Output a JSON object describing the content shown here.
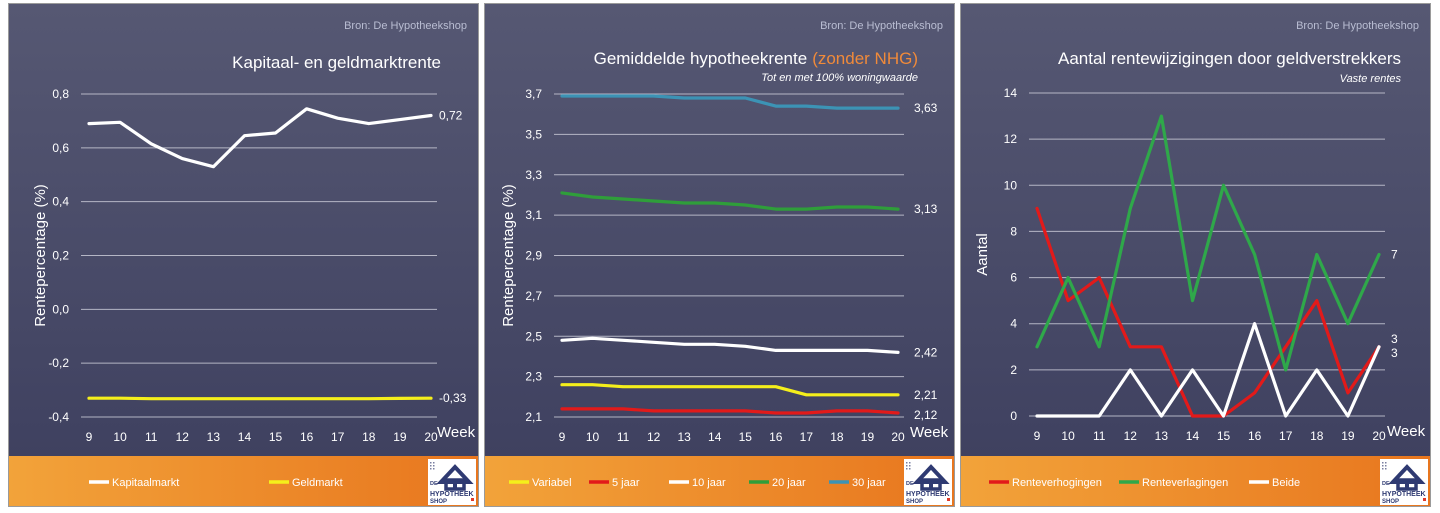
{
  "colors": {
    "panel_top": "#565873",
    "panel_bottom": "#3f4160",
    "legend_left": "#f2a33a",
    "legend_right": "#e8761e",
    "grid": "#c8c9d6",
    "title_accent": "#f08a3a"
  },
  "logo": {
    "prefix": "DE",
    "line1": "HYPOTHEEK",
    "line2": "SHOP"
  },
  "chart_data": [
    {
      "type": "line",
      "source": "Bron: De Hypotheekshop",
      "title": "Kapitaal- en geldmarktrente",
      "title_accent": "",
      "subtitle": "",
      "xlabel": "Week",
      "ylabel": "Rentepercentage (%)",
      "x": [
        9,
        10,
        11,
        12,
        13,
        14,
        15,
        16,
        17,
        18,
        19,
        20
      ],
      "ylim": [
        -0.4,
        0.8
      ],
      "yticks": [
        -0.4,
        -0.2,
        0.0,
        0.2,
        0.4,
        0.6,
        0.8
      ],
      "ytick_labels": [
        "-0,4",
        "-0,2",
        "0,0",
        "0,2",
        "0,4",
        "0,6",
        "0,8"
      ],
      "grid": true,
      "legend_position": "bottom",
      "series": [
        {
          "name": "Kapitaalmarkt",
          "color": "#ffffff",
          "end_label": "0,72",
          "values": [
            0.69,
            0.695,
            0.615,
            0.56,
            0.53,
            0.645,
            0.655,
            0.745,
            0.71,
            0.69,
            0.705,
            0.72
          ]
        },
        {
          "name": "Geldmarkt",
          "color": "#f5ef1b",
          "end_label": "-0,33",
          "values": [
            -0.33,
            -0.33,
            -0.332,
            -0.332,
            -0.332,
            -0.332,
            -0.332,
            -0.332,
            -0.332,
            -0.332,
            -0.331,
            -0.33
          ]
        }
      ]
    },
    {
      "type": "line",
      "source": "Bron: De Hypotheekshop",
      "title": "Gemiddelde hypotheekrente",
      "title_accent": "(zonder NHG)",
      "subtitle": "Tot en met 100% woningwaarde",
      "xlabel": "Week",
      "ylabel": "Rentepercentage (%)",
      "x": [
        9,
        10,
        11,
        12,
        13,
        14,
        15,
        16,
        17,
        18,
        19,
        20
      ],
      "ylim": [
        2.1,
        3.7
      ],
      "yticks": [
        2.1,
        2.3,
        2.5,
        2.7,
        2.9,
        3.1,
        3.3,
        3.5,
        3.7
      ],
      "ytick_labels": [
        "2,1",
        "2,3",
        "2,5",
        "2,7",
        "2,9",
        "3,1",
        "3,3",
        "3,5",
        "3,7"
      ],
      "grid": true,
      "legend_position": "bottom",
      "series": [
        {
          "name": "Variabel",
          "color": "#f5ef1b",
          "end_label": "2,21",
          "values": [
            2.26,
            2.26,
            2.25,
            2.25,
            2.25,
            2.25,
            2.25,
            2.25,
            2.21,
            2.21,
            2.21,
            2.21
          ]
        },
        {
          "name": "5 jaar",
          "color": "#e21a1a",
          "end_label": "2,12",
          "values": [
            2.14,
            2.14,
            2.14,
            2.13,
            2.13,
            2.13,
            2.13,
            2.12,
            2.12,
            2.13,
            2.13,
            2.12
          ]
        },
        {
          "name": "10 jaar",
          "color": "#ffffff",
          "end_label": "2,42",
          "values": [
            2.48,
            2.49,
            2.48,
            2.47,
            2.46,
            2.46,
            2.45,
            2.43,
            2.43,
            2.43,
            2.43,
            2.42
          ]
        },
        {
          "name": "20 jaar",
          "color": "#2f9e3a",
          "end_label": "3,13",
          "values": [
            3.21,
            3.19,
            3.18,
            3.17,
            3.16,
            3.16,
            3.15,
            3.13,
            3.13,
            3.14,
            3.14,
            3.13
          ]
        },
        {
          "name": "30 jaar",
          "color": "#3c93b5",
          "end_label": "3,63",
          "values": [
            3.69,
            3.69,
            3.69,
            3.69,
            3.68,
            3.68,
            3.68,
            3.64,
            3.64,
            3.63,
            3.63,
            3.63
          ]
        }
      ]
    },
    {
      "type": "line",
      "source": "Bron: De Hypotheekshop",
      "title": "Aantal rentewijzigingen door geldverstrekkers",
      "title_accent": "",
      "subtitle": "Vaste rentes",
      "xlabel": "Week",
      "ylabel": "Aantal",
      "x": [
        9,
        10,
        11,
        12,
        13,
        14,
        15,
        16,
        17,
        18,
        19,
        20
      ],
      "ylim": [
        0,
        14
      ],
      "yticks": [
        0,
        2,
        4,
        6,
        8,
        10,
        12,
        14
      ],
      "ytick_labels": [
        "0",
        "2",
        "4",
        "6",
        "8",
        "10",
        "12",
        "14"
      ],
      "grid": true,
      "legend_position": "bottom",
      "series": [
        {
          "name": "Renteverhogingen",
          "color": "#e21a1a",
          "end_label": "3",
          "values": [
            9,
            5,
            6,
            3,
            3,
            0,
            0,
            1,
            3,
            5,
            1,
            3
          ]
        },
        {
          "name": "Renteverlagingen",
          "color": "#2fa84a",
          "end_label": "7",
          "values": [
            3,
            6,
            3,
            9,
            13,
            5,
            10,
            7,
            2,
            7,
            4,
            7
          ]
        },
        {
          "name": "Beide",
          "color": "#ffffff",
          "end_label": "3",
          "values": [
            0,
            0,
            0,
            2,
            0,
            2,
            0,
            4,
            0,
            2,
            0,
            3
          ]
        }
      ]
    }
  ]
}
